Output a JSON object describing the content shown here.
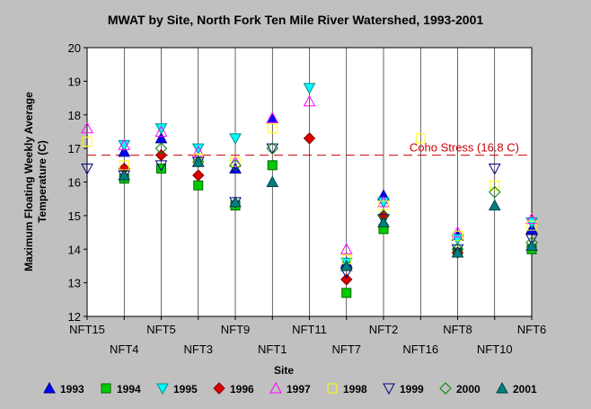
{
  "chart_data": {
    "type": "scatter",
    "title": "MWAT by Site, North Fork Ten Mile River Watershed, 1993-2001",
    "xlabel": "Site",
    "ylabel_lines": [
      "Maximum Floating Weekly Average",
      "Temperature (C)"
    ],
    "ylim": [
      12,
      20
    ],
    "yticks": [
      12,
      13,
      14,
      15,
      16,
      17,
      18,
      19,
      20
    ],
    "grid": "vertical",
    "legend_position": "bottom",
    "categories": [
      "NFT15",
      "NFT4",
      "NFT5",
      "NFT3",
      "NFT9",
      "NFT1",
      "NFT11",
      "NFT7",
      "NFT2",
      "NFT16",
      "NFT8",
      "NFT10",
      "NFT6"
    ],
    "reference_line": {
      "label": "Coho Stress (16.8 C)",
      "value": 16.8,
      "color": "#cc0000"
    },
    "series": [
      {
        "name": "1993",
        "marker": "triangle-up",
        "fill": "#0000ff",
        "stroke": "#000080",
        "values": [
          null,
          16.9,
          17.3,
          16.6,
          16.4,
          17.9,
          null,
          13.6,
          15.6,
          null,
          14.4,
          null,
          14.6
        ]
      },
      {
        "name": "1994",
        "marker": "square",
        "fill": "#00cc00",
        "stroke": "#006400",
        "values": [
          null,
          16.1,
          16.4,
          15.9,
          15.3,
          16.5,
          null,
          12.7,
          14.6,
          null,
          13.9,
          null,
          14.0
        ]
      },
      {
        "name": "1995",
        "marker": "triangle-down",
        "fill": "#00ffff",
        "stroke": "#008b8b",
        "values": [
          null,
          17.1,
          17.6,
          17.0,
          17.3,
          null,
          18.8,
          13.6,
          15.4,
          null,
          14.3,
          null,
          14.8
        ]
      },
      {
        "name": "1996",
        "marker": "diamond",
        "fill": "#dd0000",
        "stroke": "#800000",
        "values": [
          null,
          16.4,
          16.8,
          16.2,
          null,
          null,
          17.3,
          13.1,
          15.0,
          null,
          13.9,
          null,
          null
        ]
      },
      {
        "name": "1997",
        "marker": "triangle-up",
        "fill": "none",
        "stroke": "#ff00ff",
        "values": [
          17.6,
          17.1,
          17.5,
          16.9,
          16.6,
          17.9,
          18.4,
          14.0,
          15.4,
          null,
          14.5,
          null,
          14.9
        ]
      },
      {
        "name": "1998",
        "marker": "square",
        "fill": "none",
        "stroke": "#ffff00",
        "values": [
          17.2,
          16.5,
          null,
          16.7,
          16.6,
          17.6,
          null,
          13.7,
          15.3,
          17.3,
          14.4,
          15.9,
          14.7
        ]
      },
      {
        "name": "1999",
        "marker": "triangle-down",
        "fill": "none",
        "stroke": "#000080",
        "values": [
          16.4,
          16.2,
          16.5,
          16.6,
          15.4,
          17.0,
          null,
          13.3,
          14.9,
          null,
          14.0,
          16.4,
          14.3
        ]
      },
      {
        "name": "2000",
        "marker": "diamond",
        "fill": "none",
        "stroke": "#008000",
        "values": [
          null,
          null,
          17.0,
          16.6,
          16.5,
          17.0,
          null,
          null,
          15.0,
          null,
          14.0,
          15.7,
          14.2
        ]
      },
      {
        "name": "2001",
        "marker": "triangle-up",
        "fill": "#008080",
        "stroke": "#004040",
        "values": [
          null,
          16.2,
          null,
          16.6,
          15.4,
          16.0,
          null,
          13.5,
          14.8,
          null,
          13.9,
          15.3,
          14.1
        ]
      }
    ]
  }
}
